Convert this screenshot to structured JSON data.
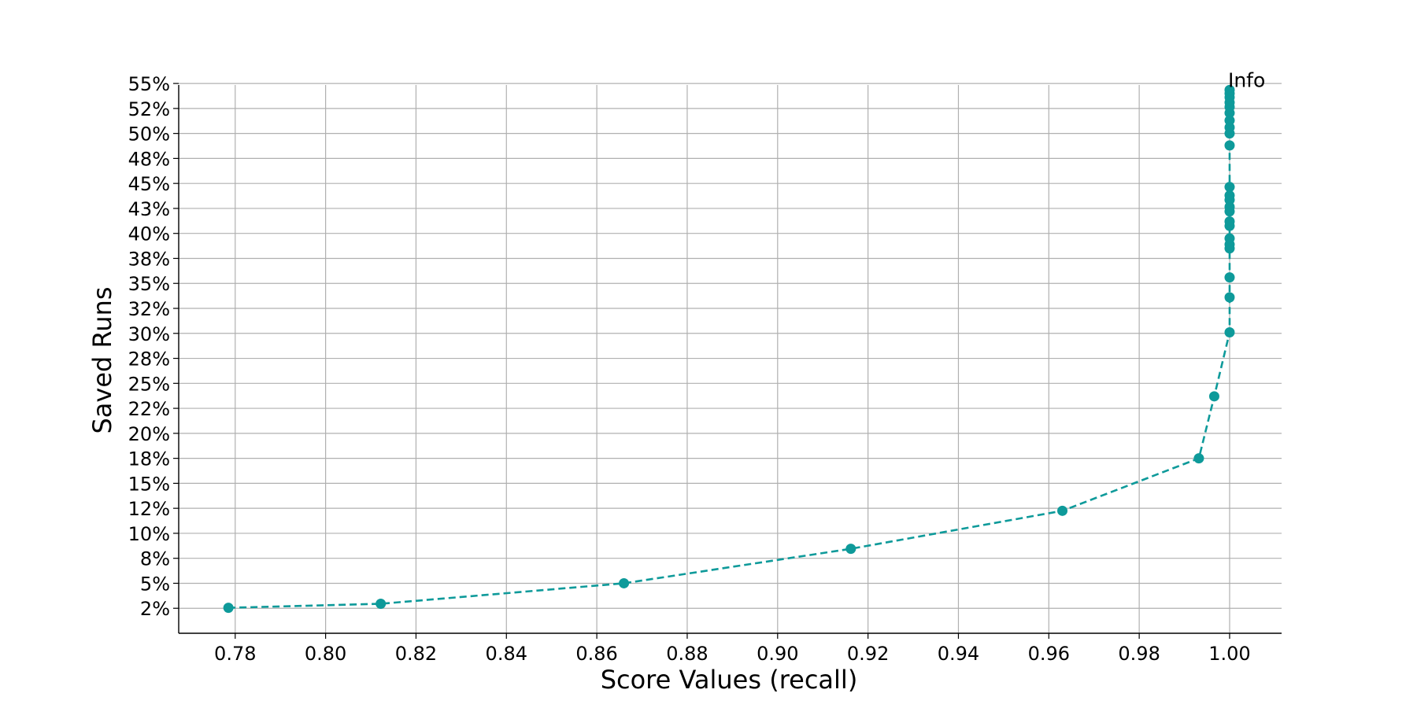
{
  "chart_data": {
    "type": "line",
    "title": "",
    "xlabel": "Score Values (recall)",
    "ylabel": "Saved Runs",
    "xlim": [
      0.7675,
      1.0115
    ],
    "ylim": [
      0.0,
      0.5485
    ],
    "x_ticks": [
      0.78,
      0.8,
      0.82,
      0.84,
      0.86,
      0.88,
      0.9,
      0.92,
      0.94,
      0.96,
      0.98,
      1.0
    ],
    "x_tick_labels": [
      "0.78",
      "0.80",
      "0.82",
      "0.84",
      "0.86",
      "0.88",
      "0.90",
      "0.92",
      "0.94",
      "0.96",
      "0.98",
      "1.00"
    ],
    "y_ticks": [
      0.025,
      0.05,
      0.075,
      0.1,
      0.125,
      0.15,
      0.175,
      0.2,
      0.225,
      0.25,
      0.275,
      0.3,
      0.325,
      0.35,
      0.375,
      0.4,
      0.425,
      0.45,
      0.475,
      0.5,
      0.525,
      0.55
    ],
    "y_tick_labels": [
      "2%",
      "5%",
      "8%",
      "10%",
      "12%",
      "15%",
      "18%",
      "20%",
      "22%",
      "25%",
      "28%",
      "30%",
      "32%",
      "35%",
      "38%",
      "40%",
      "43%",
      "45%",
      "48%",
      "50%",
      "52%",
      "55%"
    ],
    "grid": true,
    "line_style": "dashed",
    "marker": "circle",
    "color": "#0e9a9a",
    "series": [
      {
        "x": [
          0.7785,
          0.8122,
          0.866,
          0.9162,
          0.963,
          0.9932,
          0.9966,
          1.0,
          1.0,
          1.0,
          1.0,
          1.0,
          1.0,
          1.0,
          1.0,
          1.0,
          1.0,
          1.0,
          1.0,
          1.0,
          1.0,
          1.0,
          1.0,
          1.0,
          1.0,
          1.0,
          1.0,
          1.0,
          1.0,
          1.0
        ],
        "y": [
          0.0255,
          0.0295,
          0.05,
          0.0845,
          0.1225,
          0.175,
          0.237,
          0.301,
          0.336,
          0.356,
          0.385,
          0.389,
          0.395,
          0.4075,
          0.412,
          0.422,
          0.4265,
          0.4335,
          0.438,
          0.4465,
          0.488,
          0.5,
          0.506,
          0.513,
          0.5205,
          0.5265,
          0.531,
          0.536,
          0.54,
          0.5435
        ]
      }
    ],
    "annotations": [
      {
        "text": "Info",
        "x": 1.0,
        "y": 0.5435
      }
    ]
  }
}
